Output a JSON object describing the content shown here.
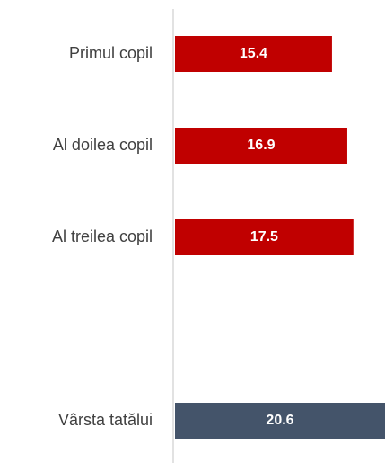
{
  "chart_data": {
    "type": "hbar",
    "categories": [
      "Primul copil",
      "Al doilea copil",
      "Al treilea copil",
      null,
      "Vârsta tatălui"
    ],
    "values": [
      15.4,
      16.9,
      17.5,
      null,
      20.6
    ],
    "colors": [
      "#c00000",
      "#c00000",
      "#c00000",
      null,
      "#44546a"
    ]
  }
}
